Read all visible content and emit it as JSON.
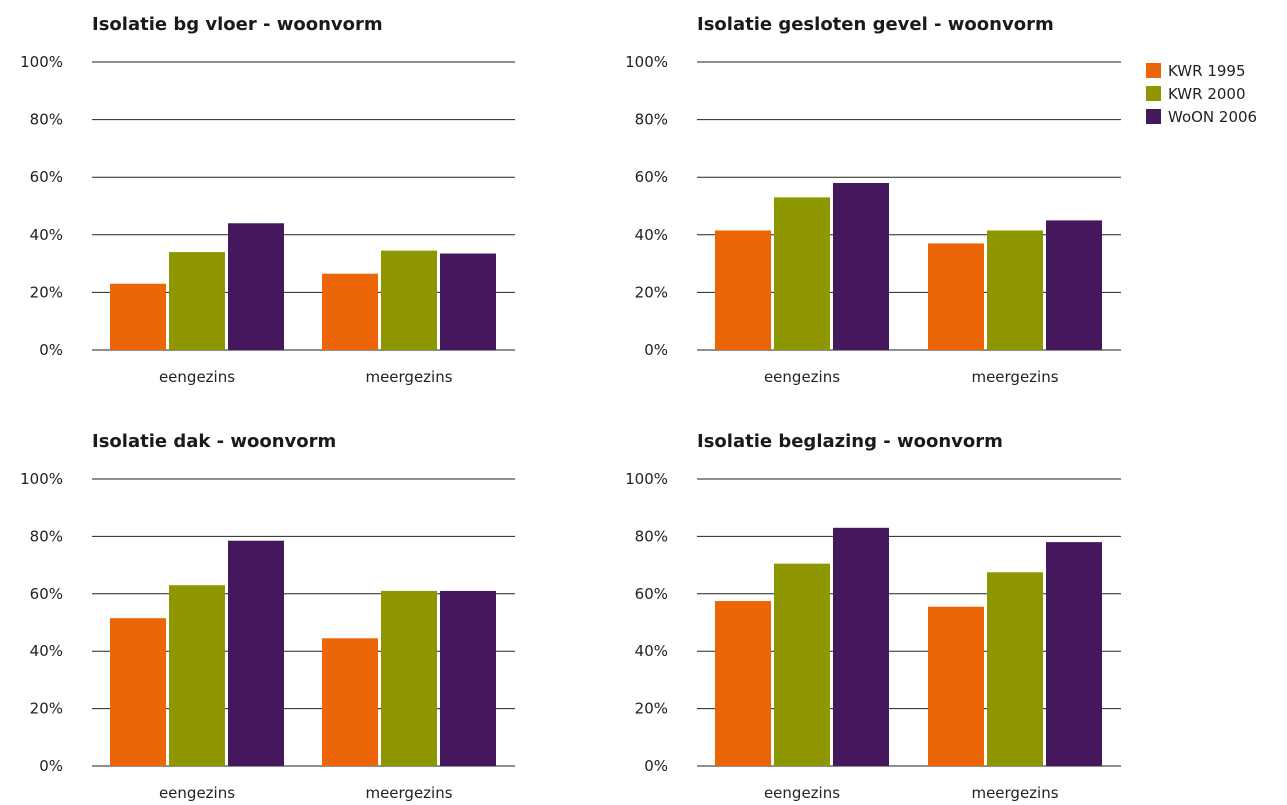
{
  "legend": {
    "entries": [
      {
        "label": "KWR 1995",
        "color": "#ec6608"
      },
      {
        "label": "KWR 2000",
        "color": "#8f9700"
      },
      {
        "label": "WoON 2006",
        "color": "#45175c"
      }
    ]
  },
  "chart_data": [
    {
      "type": "bar",
      "title": "Isolatie bg vloer - woonvorm",
      "categories": [
        "eengezins",
        "meergezins"
      ],
      "series": [
        {
          "name": "KWR 1995",
          "values": [
            23,
            26.5
          ]
        },
        {
          "name": "KWR 2000",
          "values": [
            34,
            34.5
          ]
        },
        {
          "name": "WoON 2006",
          "values": [
            44,
            33.5
          ]
        }
      ],
      "ylim": [
        0,
        100
      ],
      "yticks": [
        "0%",
        "20%",
        "40%",
        "60%",
        "80%",
        "100%"
      ],
      "grid": true,
      "legend_position": "none"
    },
    {
      "type": "bar",
      "title": "Isolatie gesloten gevel - woonvorm",
      "categories": [
        "eengezins",
        "meergezins"
      ],
      "series": [
        {
          "name": "KWR 1995",
          "values": [
            41.5,
            37
          ]
        },
        {
          "name": "KWR 2000",
          "values": [
            53,
            41.5
          ]
        },
        {
          "name": "WoON 2006",
          "values": [
            58,
            45
          ]
        }
      ],
      "ylim": [
        0,
        100
      ],
      "yticks": [
        "0%",
        "20%",
        "40%",
        "60%",
        "80%",
        "100%"
      ],
      "grid": true,
      "legend_position": "top-right"
    },
    {
      "type": "bar",
      "title": "Isolatie dak - woonvorm",
      "categories": [
        "eengezins",
        "meergezins"
      ],
      "series": [
        {
          "name": "KWR 1995",
          "values": [
            51.5,
            44.5
          ]
        },
        {
          "name": "KWR 2000",
          "values": [
            63,
            61
          ]
        },
        {
          "name": "WoON 2006",
          "values": [
            78.5,
            61
          ]
        }
      ],
      "ylim": [
        0,
        100
      ],
      "yticks": [
        "0%",
        "20%",
        "40%",
        "60%",
        "80%",
        "100%"
      ],
      "grid": true,
      "legend_position": "none"
    },
    {
      "type": "bar",
      "title": "Isolatie beglazing - woonvorm",
      "categories": [
        "eengezins",
        "meergezins"
      ],
      "series": [
        {
          "name": "KWR 1995",
          "values": [
            57.5,
            55.5
          ]
        },
        {
          "name": "KWR 2000",
          "values": [
            70.5,
            67.5
          ]
        },
        {
          "name": "WoON 2006",
          "values": [
            83,
            78
          ]
        }
      ],
      "ylim": [
        0,
        100
      ],
      "yticks": [
        "0%",
        "20%",
        "40%",
        "60%",
        "80%",
        "100%"
      ],
      "grid": true,
      "legend_position": "none"
    }
  ]
}
